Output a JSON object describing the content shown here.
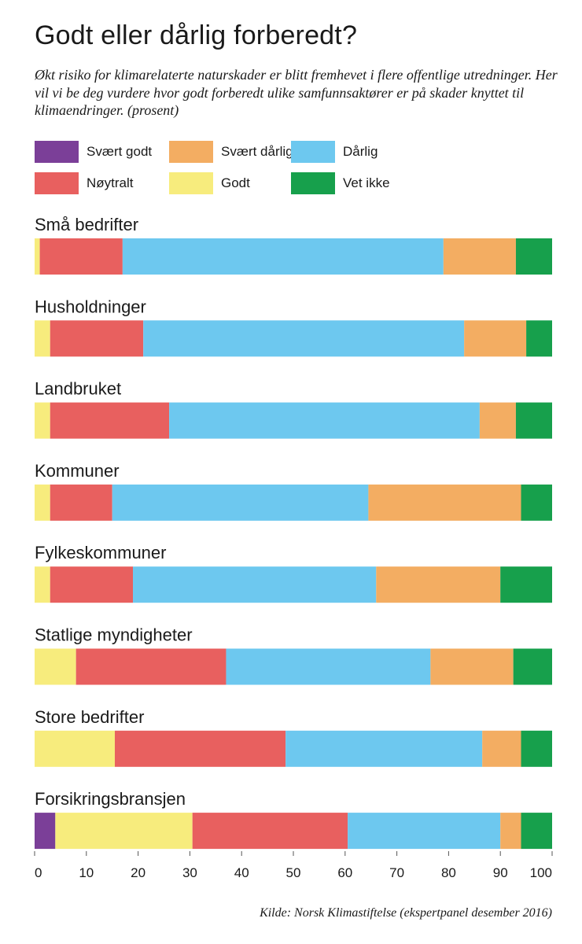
{
  "chart_data": {
    "type": "bar",
    "orientation": "horizontal",
    "stacked": true,
    "title": "Godt eller dårlig forberedt?",
    "subtitle": "Økt risiko for klimarelaterte naturskader er blitt fremhevet i flere offentlige utredninger. Her vil vi be deg vurdere hvor godt forberedt ulike samfunnsaktører er på skader knyttet til klimaendringer. (prosent)",
    "source": "Kilde: Norsk Klimastiftelse (ekspertpanel desember 2016)",
    "categories": [
      "Små bedrifter",
      "Husholdninger",
      "Landbruket",
      "Kommuner",
      "Fylkeskommuner",
      "Statlige myndigheter",
      "Store bedrifter",
      "Forsikringsbransjen"
    ],
    "series": [
      {
        "name": "Svært godt",
        "color": "#7b3f98",
        "values": [
          0,
          0,
          0,
          0,
          0,
          0,
          0,
          4
        ]
      },
      {
        "name": "Godt",
        "color": "#f7ec7d",
        "values": [
          1,
          3,
          3,
          3,
          3,
          8,
          15.5,
          26.5
        ]
      },
      {
        "name": "Nøytralt",
        "color": "#e8605f",
        "values": [
          16,
          18,
          23,
          12,
          16,
          29,
          33,
          30
        ]
      },
      {
        "name": "Dårlig",
        "color": "#6dc8ef",
        "values": [
          62,
          62,
          60,
          49.5,
          47,
          39.5,
          38,
          29.5
        ]
      },
      {
        "name": "Svært dårlig",
        "color": "#f3ad62",
        "values": [
          14,
          12,
          7,
          29.5,
          24,
          16,
          7.5,
          4
        ]
      },
      {
        "name": "Vet ikke",
        "color": "#17a04c",
        "values": [
          7,
          5,
          7,
          6,
          10,
          7.5,
          6,
          6
        ]
      }
    ],
    "legend_order": [
      0,
      2,
      4,
      1,
      3,
      5
    ],
    "legend_position": "top",
    "xlim": [
      0,
      100
    ],
    "xticks": [
      0,
      10,
      20,
      30,
      40,
      50,
      60,
      70,
      80,
      90,
      100
    ],
    "grid": false
  }
}
